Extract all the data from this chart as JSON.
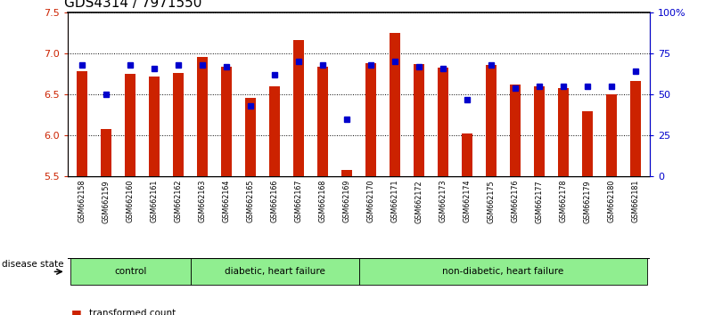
{
  "title": "GDS4314 / 7971550",
  "samples": [
    "GSM662158",
    "GSM662159",
    "GSM662160",
    "GSM662161",
    "GSM662162",
    "GSM662163",
    "GSM662164",
    "GSM662165",
    "GSM662166",
    "GSM662167",
    "GSM662168",
    "GSM662169",
    "GSM662170",
    "GSM662171",
    "GSM662172",
    "GSM662173",
    "GSM662174",
    "GSM662175",
    "GSM662176",
    "GSM662177",
    "GSM662178",
    "GSM662179",
    "GSM662180",
    "GSM662181"
  ],
  "red_values": [
    6.78,
    6.08,
    6.75,
    6.72,
    6.76,
    6.96,
    6.84,
    6.46,
    6.6,
    7.17,
    6.84,
    5.58,
    6.88,
    7.25,
    6.87,
    6.83,
    6.02,
    6.86,
    6.62,
    6.6,
    6.58,
    6.3,
    6.5,
    6.67
  ],
  "blue_values": [
    68,
    50,
    68,
    66,
    68,
    68,
    67,
    43,
    62,
    70,
    68,
    35,
    68,
    70,
    67,
    66,
    47,
    68,
    54,
    55,
    55,
    55,
    55,
    64
  ],
  "group_data": [
    {
      "label": "control",
      "start": 0,
      "end": 5,
      "color": "#90ee90"
    },
    {
      "label": "diabetic, heart failure",
      "start": 5,
      "end": 12,
      "color": "#90ee90"
    },
    {
      "label": "non-diabetic, heart failure",
      "start": 12,
      "end": 24,
      "color": "#90ee90"
    }
  ],
  "ylim_left": [
    5.5,
    7.5
  ],
  "ylim_right": [
    0,
    100
  ],
  "yticks_left": [
    5.5,
    6.0,
    6.5,
    7.0,
    7.5
  ],
  "yticks_right": [
    0,
    25,
    50,
    75,
    100
  ],
  "ytick_labels_right": [
    "0",
    "25",
    "50",
    "75",
    "100%"
  ],
  "bar_color": "#cc2200",
  "dot_color": "#0000cc",
  "disease_state_label": "disease state",
  "title_fontsize": 11,
  "bar_width": 0.45
}
